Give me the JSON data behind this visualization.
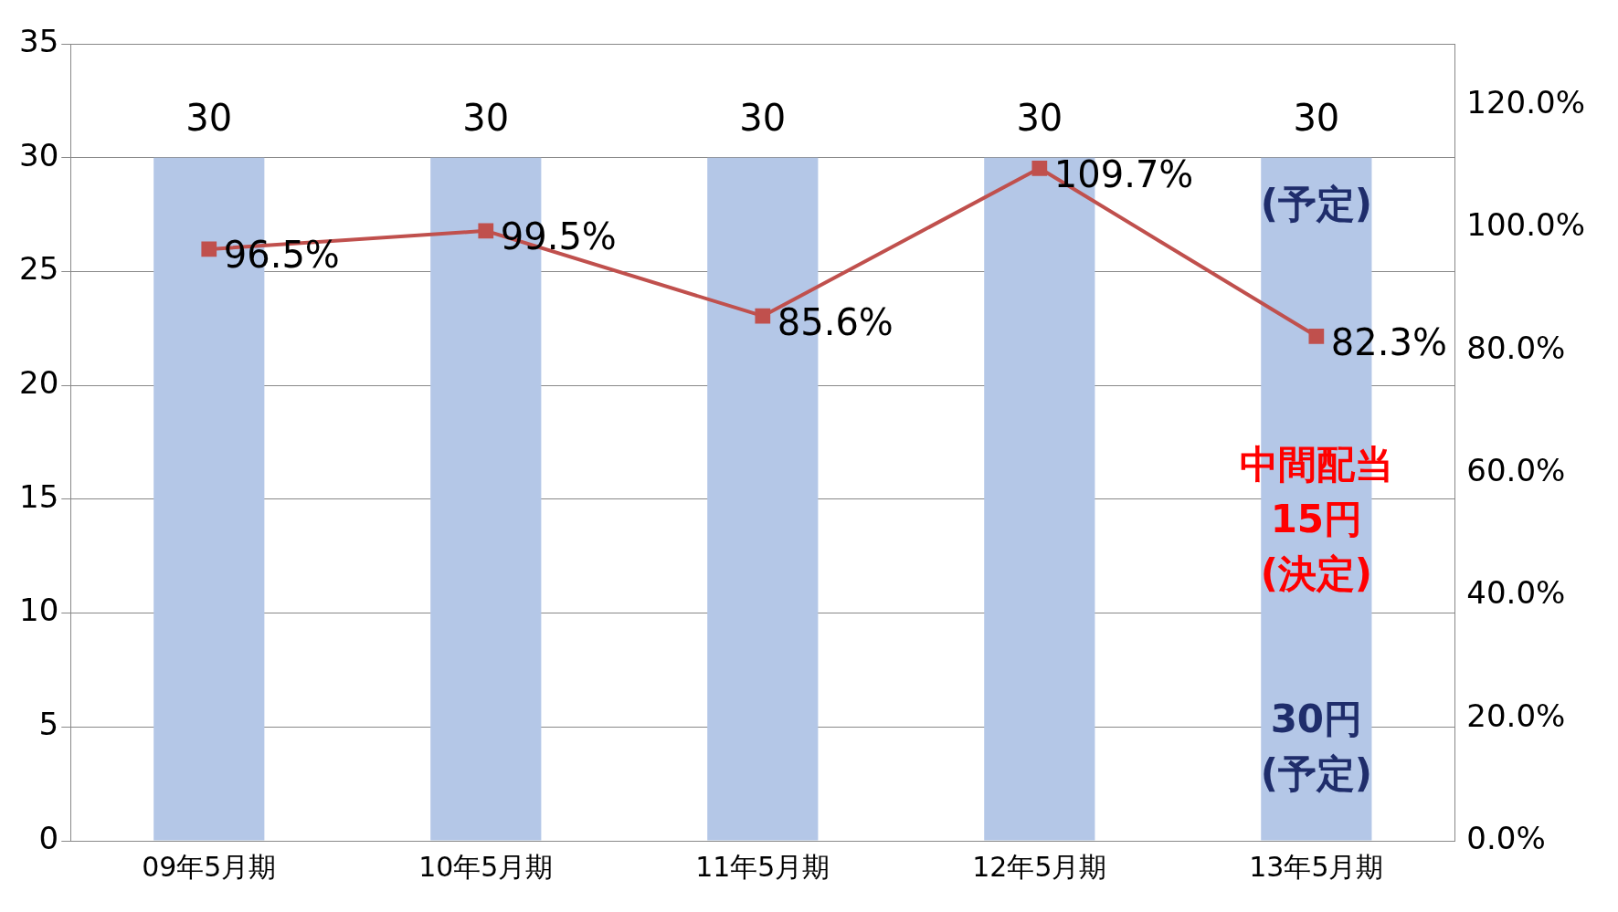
{
  "chart_data": {
    "type": "bar",
    "categories": [
      "09年5月期",
      "10年5月期",
      "11年5月期",
      "12年5月期",
      "13年5月期"
    ],
    "series": [
      {
        "color": "#b4c7e7",
        "values": [
          30,
          30,
          30,
          30,
          30
        ],
        "value_labels": [
          "30",
          "30",
          "30",
          "30",
          "30"
        ]
      },
      {
        "type": "line",
        "axis": "y2",
        "color": "#c0504d",
        "marker": "square",
        "values": [
          96.5,
          99.5,
          85.6,
          109.7,
          82.3
        ],
        "value_labels": [
          "96.5%",
          "99.5%",
          "85.6%",
          "109.7%",
          "82.3%"
        ]
      }
    ],
    "ylim": [
      0,
      35
    ],
    "yticks": [
      0,
      5,
      10,
      15,
      20,
      25,
      30,
      35
    ],
    "y2lim": [
      0,
      130
    ],
    "y2ticks": [
      {
        "value": 0,
        "label": "0.0%"
      },
      {
        "value": 20,
        "label": "20.0%"
      },
      {
        "value": 40,
        "label": "40.0%"
      },
      {
        "value": 60,
        "label": "60.0%"
      },
      {
        "value": 80,
        "label": "80.0%"
      },
      {
        "value": 100,
        "label": "100.0%"
      },
      {
        "value": 120,
        "label": "120.0%"
      }
    ],
    "grid": "y",
    "legend": false,
    "annotations": [
      "(予定)",
      "中間配当\n15円\n(決定)",
      "30円\n(予定)"
    ]
  }
}
